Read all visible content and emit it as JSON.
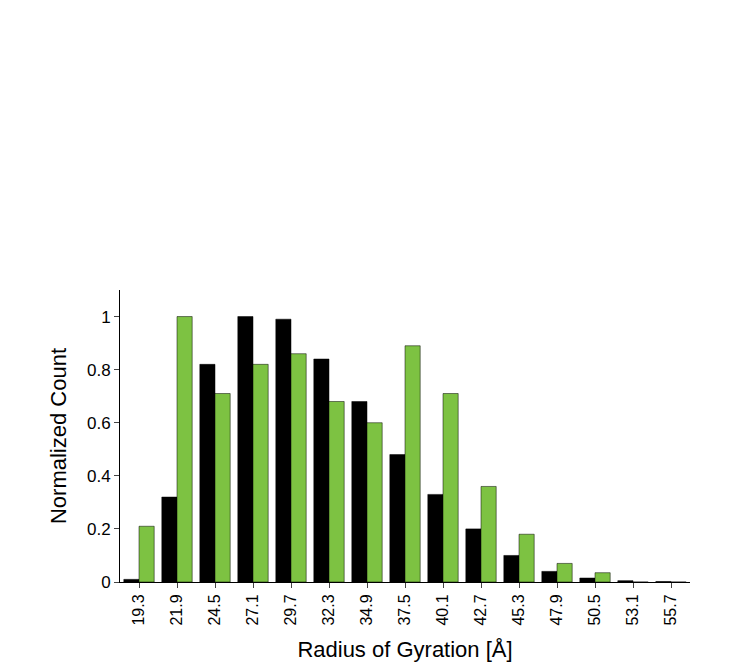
{
  "chart_data": {
    "type": "bar",
    "x_label": "Radius of Gyration [Å]",
    "y_label": "Normalized Count",
    "categories": [
      "19.3",
      "21.9",
      "24.5",
      "27.1",
      "29.7",
      "32.3",
      "34.9",
      "37.5",
      "40.1",
      "42.7",
      "45.3",
      "47.9",
      "50.5",
      "53.1",
      "55.7"
    ],
    "series": [
      {
        "color": "#000000",
        "values": [
          0.01,
          0.32,
          0.82,
          1.0,
          0.99,
          0.84,
          0.68,
          0.48,
          0.33,
          0.2,
          0.1,
          0.04,
          0.015,
          0.005,
          0.002
        ]
      },
      {
        "color": "#7dc242",
        "values": [
          0.21,
          1.0,
          0.71,
          0.82,
          0.86,
          0.68,
          0.6,
          0.89,
          0.71,
          0.36,
          0.18,
          0.07,
          0.035,
          0,
          0
        ]
      }
    ],
    "ylim": [
      0,
      1.1
    ],
    "yticks": [
      0,
      0.2,
      0.4,
      0.6,
      0.8,
      1
    ],
    "grid": false
  }
}
